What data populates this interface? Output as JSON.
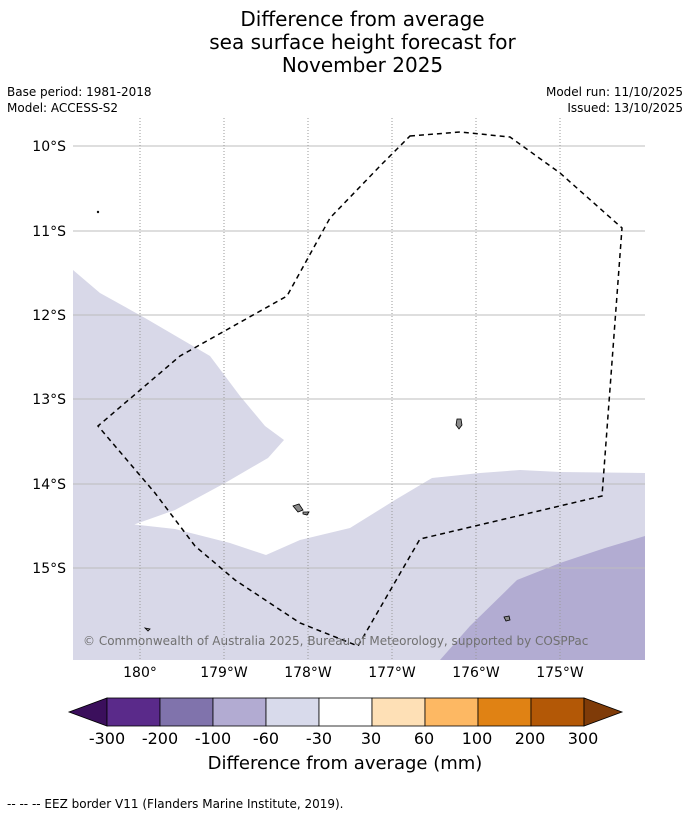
{
  "title": {
    "line1": "Difference from average",
    "line2": "sea surface height forecast for",
    "line3": "November 2025"
  },
  "meta": {
    "base_period": "Base period: 1981-2018",
    "model": "Model: ACCESS-S2",
    "model_run": "Model run: 11/10/2025",
    "issued": "Issued: 13/10/2025"
  },
  "map": {
    "lat_labels": [
      "10°S",
      "11°S",
      "12°S",
      "13°S",
      "14°S",
      "15°S"
    ],
    "lon_labels": [
      "180°",
      "179°W",
      "178°W",
      "177°W",
      "176°W",
      "175°W"
    ],
    "copyright": "© Commonwealth of Australia 2025, Bureau of Meteorology, supported by COSPPac",
    "colors": {
      "light_purple": "#d8d8e8",
      "medium_purple": "#b2acd2",
      "grid": "#bdbdbd",
      "eez": "#000000",
      "land": "#8a8a8a"
    }
  },
  "colorbar": {
    "ticks": [
      "-300",
      "-200",
      "-100",
      "-60",
      "-30",
      "30",
      "60",
      "100",
      "200",
      "300"
    ],
    "colors": [
      "#3b0f5c",
      "#5a2a8a",
      "#8073ac",
      "#b2abd2",
      "#d8daeb",
      "#ffffff",
      "#fee0b6",
      "#fdb863",
      "#e08214",
      "#b35806",
      "#7f3b08"
    ],
    "label": "Difference from average (mm)"
  },
  "footer": {
    "legend": "--  --  -- EEZ border V11 (Flanders Marine Institute, 2019)."
  }
}
